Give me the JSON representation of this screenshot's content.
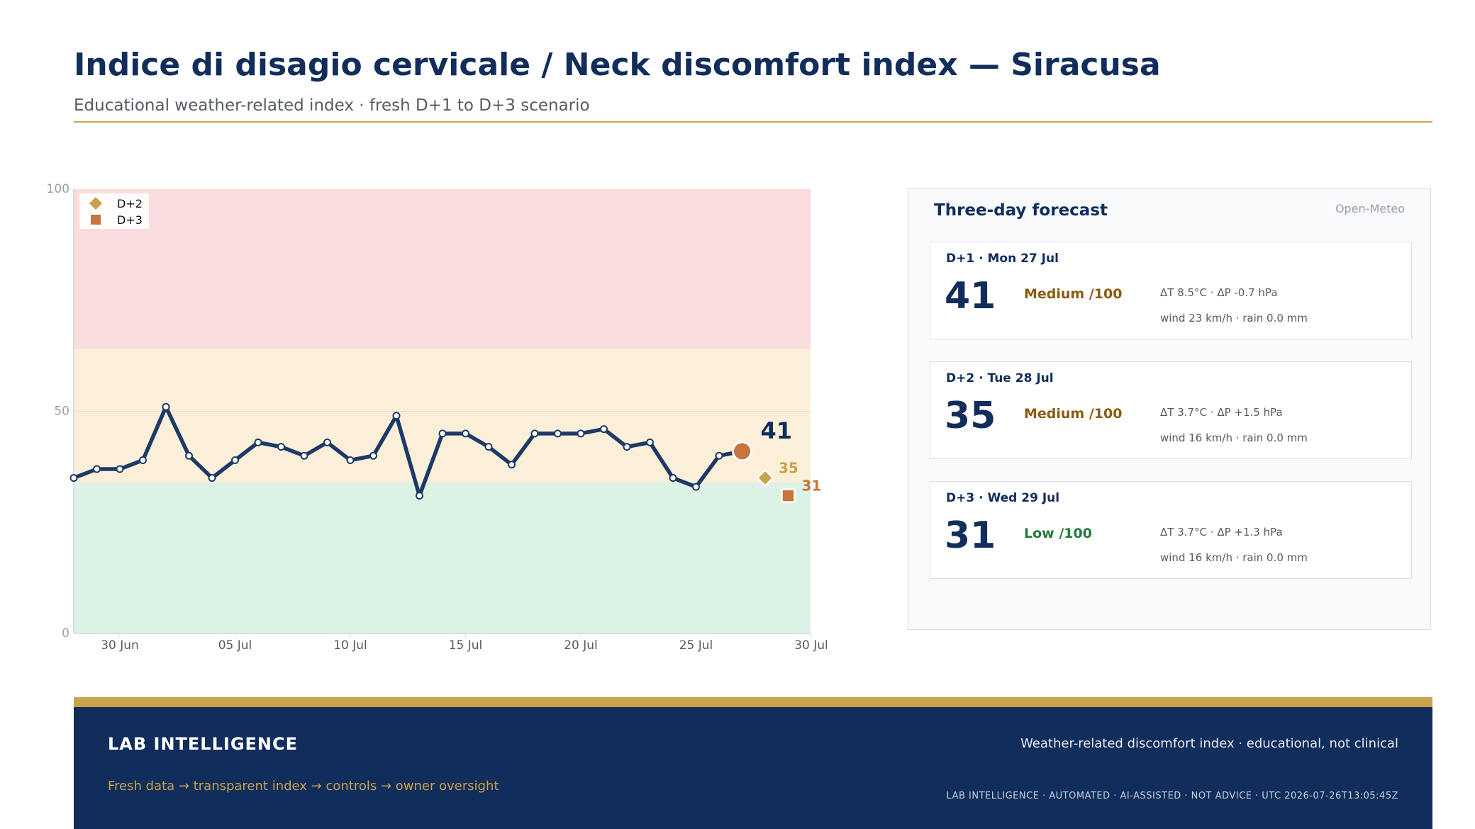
{
  "header": {
    "title": "Indice di disagio cervicale / Neck discomfort index — Siracusa",
    "subtitle": "Educational weather-related index · fresh D+1 to D+3 scenario"
  },
  "chart_data": {
    "type": "line",
    "x_start": "2026-06-28",
    "x_ticks": [
      "30 Jun",
      "05 Jul",
      "10 Jul",
      "15 Jul",
      "20 Jul",
      "25 Jul",
      "30 Jul"
    ],
    "y_ticks": [
      "0",
      "50",
      "100"
    ],
    "ylim": [
      0,
      100
    ],
    "bands": [
      {
        "from": 0,
        "to": 34,
        "color": "#dcf2e4"
      },
      {
        "from": 34,
        "to": 64,
        "color": "#fcefd9"
      },
      {
        "from": 64,
        "to": 100,
        "color": "#fbdcdc"
      }
    ],
    "series": [
      {
        "values": [
          35,
          37,
          37,
          39,
          51,
          40,
          35,
          39,
          43,
          42,
          40,
          43,
          39,
          40,
          49,
          31,
          45,
          45,
          42,
          38,
          45,
          45,
          45,
          46,
          42,
          43,
          35,
          33,
          40,
          41
        ],
        "color": "#1d3a66"
      }
    ],
    "today_marker": {
      "date": "27 Jul",
      "value": 41,
      "label": "41",
      "color": "#c8743d"
    },
    "forecast_points": [
      {
        "name": "D+2",
        "date": "28 Jul",
        "value": 35,
        "label": "35",
        "marker": "diamond",
        "color": "#c9a24a"
      },
      {
        "name": "D+3",
        "date": "29 Jul",
        "value": 31,
        "label": "31",
        "marker": "square",
        "color": "#c8743d"
      }
    ],
    "legend": [
      "D+2",
      "D+3"
    ],
    "legend_position": "top-left"
  },
  "forecast": {
    "title": "Three-day forecast",
    "source": "Open-Meteo",
    "cards": [
      {
        "head": "D+1 · Mon 27 Jul",
        "score": "41",
        "level": "Medium /100",
        "level_color": "#8a5a0f",
        "meta1": "ΔT 8.5°C · ΔP -0.7 hPa",
        "meta2": "wind 23 km/h · rain 0.0 mm"
      },
      {
        "head": "D+2 · Tue 28 Jul",
        "score": "35",
        "level": "Medium /100",
        "level_color": "#8a5a0f",
        "meta1": "ΔT 3.7°C · ΔP +1.5 hPa",
        "meta2": "wind 16 km/h · rain 0.0 mm"
      },
      {
        "head": "D+3 · Wed 29 Jul",
        "score": "31",
        "level": "Low /100",
        "level_color": "#237a3c",
        "meta1": "ΔT 3.7°C · ΔP +1.3 hPa",
        "meta2": "wind 16 km/h · rain 0.0 mm"
      }
    ]
  },
  "footer": {
    "brand": "LAB INTELLIGENCE",
    "tagline": "Fresh data → transparent index → controls → owner oversight",
    "note": "Weather-related discomfort index · educational, not clinical",
    "stamp": "LAB INTELLIGENCE · AUTOMATED · AI-ASSISTED · NOT ADVICE · UTC 2026-07-26T13:05:45Z"
  },
  "colors": {
    "navy": "#112d5c",
    "gold": "#c9a24a",
    "orange": "#c8743d"
  }
}
